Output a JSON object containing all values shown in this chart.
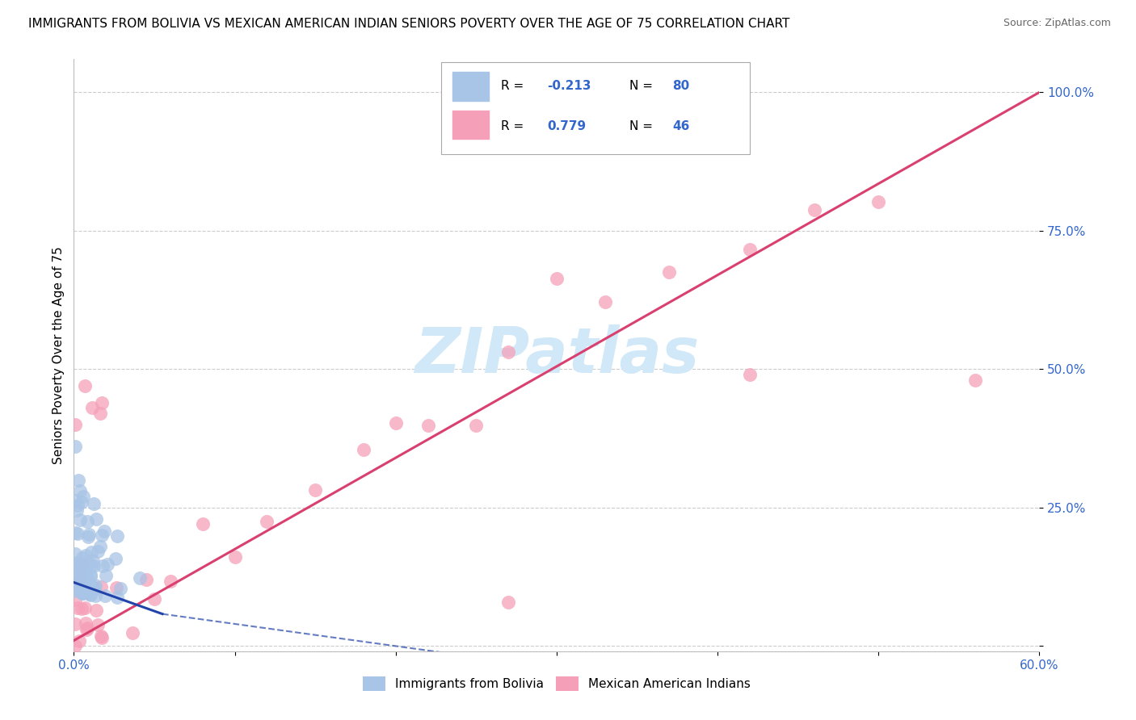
{
  "title": "IMMIGRANTS FROM BOLIVIA VS MEXICAN AMERICAN INDIAN SENIORS POVERTY OVER THE AGE OF 75 CORRELATION CHART",
  "source": "Source: ZipAtlas.com",
  "ylabel": "Seniors Poverty Over the Age of 75",
  "xlim": [
    0.0,
    0.6
  ],
  "ylim": [
    -0.01,
    1.06
  ],
  "legend_r_blue": "-0.213",
  "legend_n_blue": "80",
  "legend_r_pink": "0.779",
  "legend_n_pink": "46",
  "legend_label_blue": "Immigrants from Bolivia",
  "legend_label_pink": "Mexican American Indians",
  "blue_color": "#a8c4e6",
  "pink_color": "#f5a0b8",
  "blue_line_color": "#2244aa",
  "pink_line_color": "#d94070",
  "watermark": "ZIPatlas",
  "watermark_color": "#d0e8f8",
  "background_color": "#ffffff",
  "grid_color": "#cccccc",
  "title_fontsize": 11,
  "axis_label_fontsize": 11,
  "tick_fontsize": 11
}
